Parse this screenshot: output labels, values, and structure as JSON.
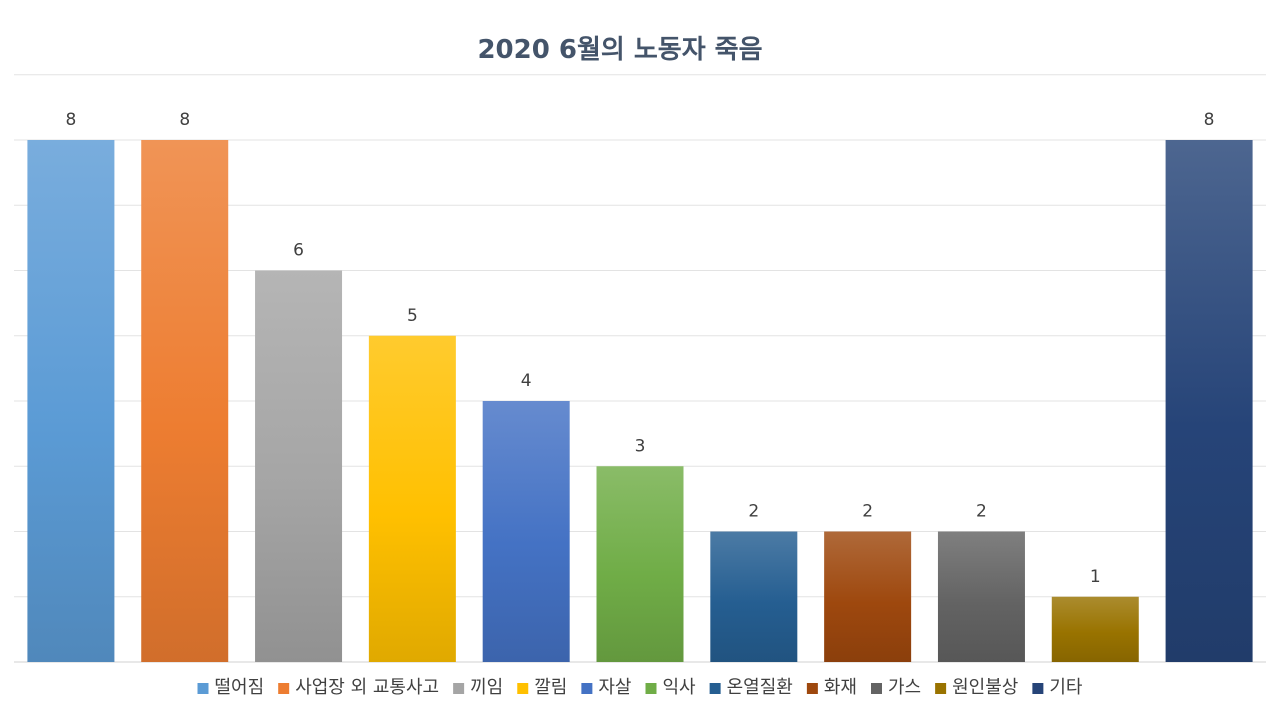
{
  "chart_data": {
    "type": "bar",
    "title": "2020 6월의 노동자 죽음",
    "xlabel": "",
    "ylabel": "",
    "ylim": [
      0,
      8
    ],
    "grid": true,
    "legend": "bottom",
    "data_labels": true,
    "categories": [
      "떨어짐",
      "사업장 외 교통사고",
      "끼임",
      "깔림",
      "자살",
      "익사",
      "온열질환",
      "화재",
      "가스",
      "원인불상",
      "기타"
    ],
    "values": [
      8,
      8,
      6,
      5,
      4,
      3,
      2,
      2,
      2,
      1,
      8
    ],
    "colors": [
      "#5b9bd5",
      "#ed7d31",
      "#a5a5a5",
      "#ffc000",
      "#4472c4",
      "#70ad47",
      "#255e91",
      "#9e480e",
      "#636363",
      "#997300",
      "#264478"
    ]
  }
}
